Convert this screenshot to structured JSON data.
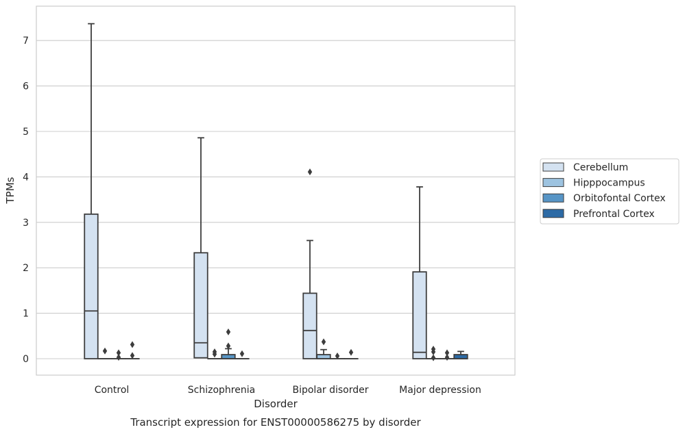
{
  "chart_data": {
    "type": "box",
    "title": "Transcript expression for ENST00000586275 by disorder",
    "xlabel": "Disorder",
    "ylabel": "TPMs",
    "ylim": [
      -0.35,
      7.75
    ],
    "yticks": [
      0,
      1,
      2,
      3,
      4,
      5,
      6,
      7
    ],
    "grid": true,
    "legend_position": "right",
    "categories": [
      "Control",
      "Schizophrenia",
      "Bipolar disorder",
      "Major depression"
    ],
    "series": [
      {
        "name": "Cerebellum",
        "color": "#d4e2f1",
        "boxes": [
          {
            "min": 0,
            "q1": 0,
            "median": 1.05,
            "q3": 3.18,
            "max": 7.37,
            "outliers": []
          },
          {
            "min": 0.02,
            "q1": 0.02,
            "median": 0.35,
            "q3": 2.33,
            "max": 4.86,
            "outliers": []
          },
          {
            "min": 0,
            "q1": 0,
            "median": 0.62,
            "q3": 1.44,
            "max": 2.6,
            "outliers": [
              4.11
            ]
          },
          {
            "min": 0,
            "q1": 0,
            "median": 0.14,
            "q3": 1.91,
            "max": 3.78,
            "outliers": []
          }
        ]
      },
      {
        "name": "Hipppocampus",
        "color": "#9dc3e0",
        "boxes": [
          {
            "min": 0,
            "q1": 0,
            "median": 0,
            "q3": 0,
            "max": 0,
            "outliers": [
              0.17
            ]
          },
          {
            "min": 0,
            "q1": 0,
            "median": 0,
            "q3": 0,
            "max": 0,
            "outliers": [
              0.1,
              0.15
            ]
          },
          {
            "min": 0,
            "q1": 0,
            "median": 0,
            "q3": 0.09,
            "max": 0.2,
            "outliers": [
              0.37
            ]
          },
          {
            "min": 0,
            "q1": 0,
            "median": 0,
            "q3": 0,
            "max": 0,
            "outliers": [
              0.02,
              0.15,
              0.21
            ]
          }
        ]
      },
      {
        "name": "Orbitofontal Cortex",
        "color": "#5795c6",
        "boxes": [
          {
            "min": 0,
            "q1": 0,
            "median": 0,
            "q3": 0,
            "max": 0,
            "outliers": [
              0.03,
              0.13
            ]
          },
          {
            "min": 0,
            "q1": 0,
            "median": 0,
            "q3": 0.09,
            "max": 0.22,
            "outliers": [
              0.28,
              0.59
            ]
          },
          {
            "min": 0,
            "q1": 0,
            "median": 0,
            "q3": 0,
            "max": 0,
            "outliers": [
              0.06
            ]
          },
          {
            "min": 0,
            "q1": 0,
            "median": 0,
            "q3": 0,
            "max": 0,
            "outliers": [
              0.03,
              0.13
            ]
          }
        ]
      },
      {
        "name": "Prefrontal Cortex",
        "color": "#2c6aa5",
        "boxes": [
          {
            "min": 0,
            "q1": 0,
            "median": 0,
            "q3": 0,
            "max": 0,
            "outliers": [
              0.07,
              0.31
            ]
          },
          {
            "min": 0,
            "q1": 0,
            "median": 0,
            "q3": 0,
            "max": 0,
            "outliers": [
              0.11
            ]
          },
          {
            "min": 0,
            "q1": 0,
            "median": 0,
            "q3": 0,
            "max": 0,
            "outliers": [
              0.14
            ]
          },
          {
            "min": 0,
            "q1": 0,
            "median": 0,
            "q3": 0.09,
            "max": 0.16,
            "outliers": []
          }
        ]
      }
    ]
  }
}
